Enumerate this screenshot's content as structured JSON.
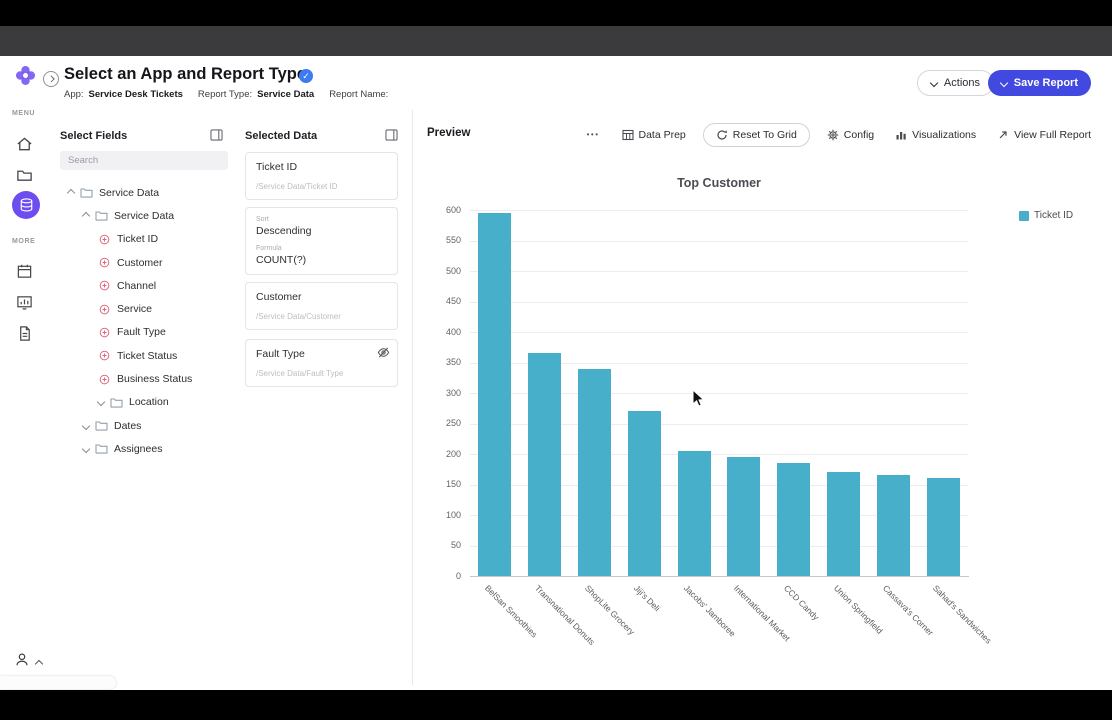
{
  "browser": {
    "url": "https://demo.yurbi.app/builder.html#0"
  },
  "icons": {
    "back_arrow": "←",
    "bookmark_star": "☆",
    "overflow_dots": "•••",
    "m_badge": "M",
    "check": "✓"
  },
  "app_header": {
    "title": "Select an App and Report Type",
    "app_label": "App:",
    "app_value": "Service Desk Tickets",
    "report_type_label": "Report Type:",
    "report_type_value": "Service Data",
    "report_name_label": "Report Name:",
    "actions_button": "Actions",
    "save_button": "Save Report"
  },
  "nav_rail": {
    "menu_label": "MENU",
    "more_label": "MORE"
  },
  "fields_panel": {
    "title": "Select Fields",
    "search_placeholder": "Search",
    "tree": [
      {
        "label": "Service Data",
        "type": "folder",
        "level": 0,
        "expanded": true
      },
      {
        "label": "Service Data",
        "type": "folder",
        "level": 1,
        "expanded": true
      },
      {
        "label": "Ticket ID",
        "type": "field",
        "level": 2
      },
      {
        "label": "Customer",
        "type": "field",
        "level": 2
      },
      {
        "label": "Channel",
        "type": "field",
        "level": 2
      },
      {
        "label": "Service",
        "type": "field",
        "level": 2
      },
      {
        "label": "Fault Type",
        "type": "field",
        "level": 2
      },
      {
        "label": "Ticket Status",
        "type": "field",
        "level": 2
      },
      {
        "label": "Business Status",
        "type": "field",
        "level": 2
      },
      {
        "label": "Location",
        "type": "folder",
        "level": 2,
        "expanded": false
      },
      {
        "label": "Dates",
        "type": "folder",
        "level": 1,
        "expanded": false
      },
      {
        "label": "Assignees",
        "type": "folder",
        "level": 1,
        "expanded": false
      }
    ]
  },
  "selected_panel": {
    "title": "Selected Data",
    "cards": [
      {
        "kind": "field",
        "name": "Ticket ID",
        "path": "/Service Data/Ticket ID",
        "hidden": false
      },
      {
        "kind": "settings",
        "sort_label": "Sort",
        "sort_value": "Descending",
        "formula_label": "Formula",
        "formula_value": "COUNT(?)"
      },
      {
        "kind": "field",
        "name": "Customer",
        "path": "/Service Data/Customer",
        "hidden": false
      },
      {
        "kind": "field",
        "name": "Fault Type",
        "path": "/Service Data/Fault Type",
        "hidden": true
      }
    ]
  },
  "preview": {
    "title": "Preview",
    "buttons": [
      {
        "label": "Data Prep",
        "icon": "table",
        "outlined": false
      },
      {
        "label": "Reset To Grid",
        "icon": "reset",
        "outlined": true
      },
      {
        "label": "Config",
        "icon": "gear",
        "outlined": false
      },
      {
        "label": "Visualizations",
        "icon": "bars",
        "outlined": false
      },
      {
        "label": "View Full Report",
        "icon": "external",
        "outlined": false
      }
    ]
  },
  "chart_data": {
    "type": "bar",
    "title": "Top Customer",
    "legend": [
      {
        "label": "Ticket ID",
        "color": "#47afc9"
      }
    ],
    "categories": [
      "BelSan Smoothies",
      "Transnational Donuts",
      "ShopLite Grocery",
      "Jiji's Deli",
      "Jacobs' Jamboree",
      "International Market",
      "CCD Candy",
      "Union Springfield",
      "Cassava's Corner",
      "Sahad's Sandwiches"
    ],
    "values": [
      595,
      365,
      340,
      270,
      205,
      195,
      185,
      170,
      165,
      160
    ],
    "xlabel": "",
    "ylabel": "",
    "ylim": [
      0,
      600
    ],
    "ytick_step": 50,
    "grid": true,
    "legend_position": "top-right",
    "bar_color": "#47afc9"
  },
  "colors": {
    "accent_blue": "#4149e0",
    "accent_purple": "#6d4cf0",
    "bar_teal": "#47afc9",
    "check_badge": "#3b7cf4"
  }
}
